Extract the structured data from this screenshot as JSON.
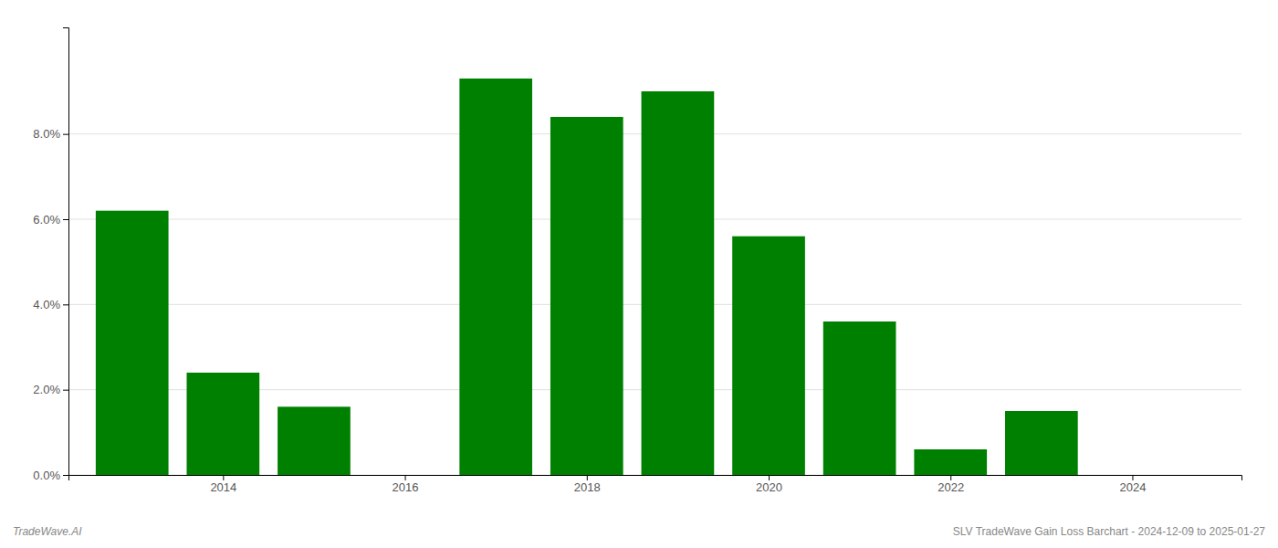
{
  "chart_data": {
    "type": "bar",
    "x": [
      2013,
      2014,
      2015,
      2017,
      2018,
      2019,
      2020,
      2021,
      2022,
      2023
    ],
    "values": [
      0.062,
      0.024,
      0.016,
      0.093,
      0.084,
      0.09,
      0.056,
      0.036,
      0.006,
      0.015
    ],
    "color": "#008000",
    "xlim": [
      2012.3,
      2025.2
    ],
    "xticks": [
      2014,
      2016,
      2018,
      2020,
      2022,
      2024
    ],
    "ylim": [
      0,
      0.105
    ],
    "yticks": [
      {
        "value": 0,
        "label": "0.0%"
      },
      {
        "value": 0.02,
        "label": "2.0%"
      },
      {
        "value": 0.04,
        "label": "4.0%"
      },
      {
        "value": 0.06,
        "label": "6.0%"
      },
      {
        "value": 0.08,
        "label": "8.0%"
      }
    ],
    "grid": true,
    "annotations": [
      {
        "text": "TradeWave.AI"
      },
      {
        "text": "SLV TradeWave Gain Loss Barchart - 2024-12-09 to 2025-01-27"
      }
    ]
  }
}
